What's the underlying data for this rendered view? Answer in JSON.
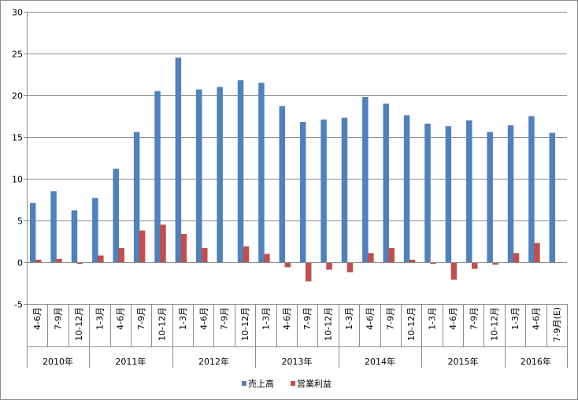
{
  "chart_data": {
    "type": "bar",
    "periods": [
      "4-6月",
      "7-9月",
      "10-12月",
      "1-3月",
      "4-6月",
      "7-9月",
      "10-12月",
      "1-3月",
      "4-6月",
      "7-9月",
      "10-12月",
      "1-3月",
      "4-6月",
      "7-9月",
      "10-12月",
      "1-3月",
      "4-6月",
      "7-9月",
      "10-12月",
      "1-3月",
      "4-6月",
      "7-9月",
      "10-12月",
      "1-3月",
      "4-6月",
      "7-9月(E)"
    ],
    "years": [
      {
        "label": "2010年",
        "count": 3
      },
      {
        "label": "2011年",
        "count": 4
      },
      {
        "label": "2012年",
        "count": 4
      },
      {
        "label": "2013年",
        "count": 4
      },
      {
        "label": "2014年",
        "count": 4
      },
      {
        "label": "2015年",
        "count": 4
      },
      {
        "label": "2016年",
        "count": 3
      }
    ],
    "series": [
      {
        "name": "売上高",
        "color": "#4f81bd",
        "values": [
          7.1,
          8.5,
          6.2,
          7.7,
          11.2,
          15.6,
          20.5,
          24.5,
          20.7,
          21.0,
          21.8,
          21.5,
          18.7,
          16.8,
          17.1,
          17.3,
          19.8,
          19.0,
          17.6,
          16.6,
          16.3,
          17.0,
          15.6,
          16.4,
          17.5,
          15.5
        ]
      },
      {
        "name": "営業利益",
        "color": "#c0504d",
        "values": [
          0.3,
          0.4,
          -0.2,
          0.8,
          1.7,
          3.8,
          4.5,
          3.4,
          1.7,
          -0.1,
          1.9,
          1.0,
          -0.6,
          -2.3,
          -0.9,
          -1.2,
          1.1,
          1.7,
          0.3,
          -0.2,
          -2.1,
          -0.8,
          -0.3,
          1.1,
          2.3,
          null
        ]
      }
    ],
    "ylim": [
      -5,
      30
    ],
    "yticks": [
      "-5",
      "0",
      "5",
      "10",
      "15",
      "20",
      "25",
      "30"
    ],
    "grid": true,
    "legend_position": "bottom"
  }
}
